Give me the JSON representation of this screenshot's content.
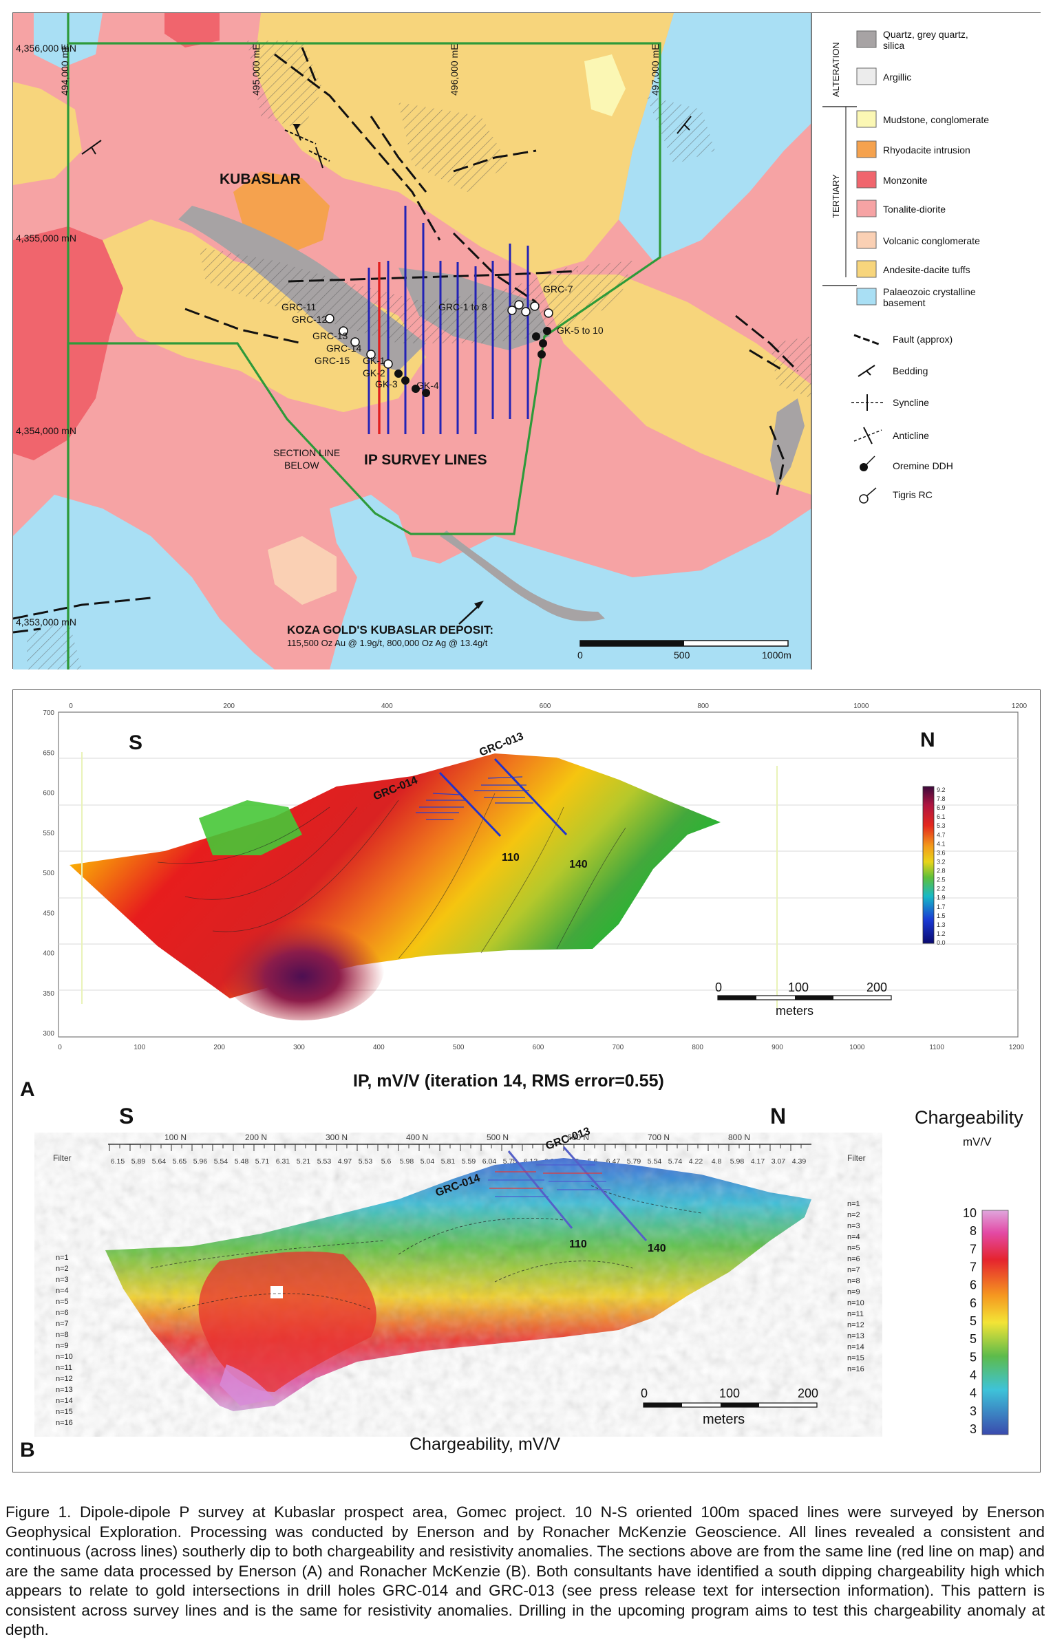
{
  "map": {
    "place_name": "KUBASLAR",
    "easting_labels": [
      "494,000 mE",
      "495,000 mE",
      "496,000 mE",
      "497,000 mE"
    ],
    "northing_labels": [
      "4,356,000 mN",
      "4,355,000 mN",
      "4,354,000 mN",
      "4,353,000 mN"
    ],
    "hole_labels": [
      "GRC-7",
      "GRC-1 to 8",
      "GK-5 to 10",
      "GRC-11",
      "GRC-12",
      "GRC-13",
      "GRC-14",
      "GRC-15",
      "GK-1",
      "GK-2",
      "GK-3",
      "GK-4"
    ],
    "ip_lines_label": "IP SURVEY LINES",
    "section_label_line1": "SECTION LINE",
    "section_label_line2": "BELOW",
    "deposit_title": "KOZA GOLD'S KUBASLAR DEPOSIT:",
    "deposit_detail": "115,500 Oz Au @ 1.9g/t, 800,000 Oz Ag @ 13.4g/t",
    "scale_labels": [
      "0",
      "500",
      "1000m"
    ],
    "colors": {
      "tonalite": "#f6a3a4",
      "andesite": "#f7d57c",
      "basement": "#a9dff4",
      "monzonite": "#f0656d",
      "rhyodacite": "#f5a24e",
      "mudstone": "#fbf7b4",
      "silica": "#a7a3a4",
      "volcanic": "#fad0b4",
      "claim": "#2e9a3a",
      "ip_line": "#2323b6",
      "section_line": "#e02020"
    }
  },
  "legend": {
    "group_alteration": "ALTERATION",
    "group_tertiary": "TERTIARY",
    "items": [
      {
        "label_lines": [
          "Quartz, grey quartz,",
          "silica"
        ],
        "color": "#a7a3a4"
      },
      {
        "label_lines": [
          "Argillic"
        ],
        "color": "#ececec"
      },
      {
        "label_lines": [
          "Mudstone, conglomerate"
        ],
        "color": "#fbf7b4"
      },
      {
        "label_lines": [
          "Rhyodacite intrusion"
        ],
        "color": "#f5a24e"
      },
      {
        "label_lines": [
          "Monzonite"
        ],
        "color": "#f0656d"
      },
      {
        "label_lines": [
          "Tonalite-diorite"
        ],
        "color": "#f6a3a4"
      },
      {
        "label_lines": [
          "Volcanic conglomerate"
        ],
        "color": "#fad0b4"
      },
      {
        "label_lines": [
          "Andesite-dacite tuffs"
        ],
        "color": "#f7d57c"
      },
      {
        "label_lines": [
          "Palaeozoic crystalline",
          "basement"
        ],
        "color": "#a9dff4"
      }
    ],
    "symbols": [
      "Fault (approx)",
      "Bedding",
      "Syncline",
      "Anticline",
      "Oremine DDH",
      "Tigris RC"
    ]
  },
  "section_a": {
    "letter": "A",
    "south": "S",
    "north": "N",
    "hole_labels": [
      "GRC-014",
      "GRC-013"
    ],
    "depth_labels": [
      "110",
      "140"
    ],
    "top_ticks": [
      "0",
      "200",
      "400",
      "600",
      "800",
      "1000",
      "1200"
    ],
    "bottom_ticks": [
      "0",
      "100",
      "200",
      "300",
      "400",
      "500",
      "600",
      "700",
      "800",
      "900",
      "1000",
      "1100",
      "1200"
    ],
    "left_ticks": [
      "700",
      "650",
      "600",
      "550",
      "500",
      "450",
      "400",
      "350",
      "300"
    ],
    "colorbar_ticks": [
      "9.2",
      "7.8",
      "6.9",
      "6.1",
      "5.3",
      "4.7",
      "4.1",
      "3.6",
      "3.2",
      "2.8",
      "2.5",
      "2.2",
      "1.9",
      "1.7",
      "1.5",
      "1.3",
      "1.2",
      "0.0"
    ],
    "scale_labels": [
      "0",
      "100",
      "200"
    ],
    "scale_unit": "meters",
    "title": "IP, mV/V (iteration 14, RMS error=0.55)"
  },
  "section_b": {
    "letter": "B",
    "south": "S",
    "north": "N",
    "hole_labels": [
      "GRC-014",
      "GRC-013"
    ],
    "depth_labels": [
      "110",
      "140"
    ],
    "northing_ticks": [
      "100 N",
      "200 N",
      "300 N",
      "400 N",
      "500 N",
      "600 N",
      "700 N",
      "800 N"
    ],
    "filter_label": "Filter",
    "filter_values": [
      "6.15",
      "5.89",
      "5.64",
      "5.65",
      "5.96",
      "5.54",
      "5.48",
      "5.71",
      "6.31",
      "5.21",
      "5.53",
      "4.97",
      "5.53",
      "5.6",
      "5.98",
      "5.04",
      "5.81",
      "5.59",
      "6.04",
      "5.75",
      "6.13",
      "6.08",
      "6.05",
      "5.6",
      "6.47",
      "5.79",
      "5.54",
      "5.74",
      "4.22",
      "4.8",
      "5.98",
      "4.17",
      "3.07",
      "4.39"
    ],
    "n_levels": [
      "n=1",
      "n=2",
      "n=3",
      "n=4",
      "n=5",
      "n=6",
      "n=7",
      "n=8",
      "n=9",
      "n=10",
      "n=11",
      "n=12",
      "n=13",
      "n=14",
      "n=15",
      "n=16"
    ],
    "legend_title": "Chargeability",
    "legend_unit": "mV/V",
    "legend_ticks": [
      "10",
      "8",
      "7",
      "7",
      "6",
      "6",
      "5",
      "5",
      "5",
      "4",
      "4",
      "3",
      "3"
    ],
    "scale_labels": [
      "0",
      "100",
      "200"
    ],
    "scale_unit": "meters",
    "title": "Chargeability, mV/V"
  },
  "caption": "Figure 1. Dipole-dipole P survey at Kubaslar prospect area, Gomec project. 10 N-S oriented 100m spaced lines were surveyed by Enerson Geophysical Exploration. Processing was conducted by Enerson and by Ronacher McKenzie Geoscience. All lines revealed a consistent and continuous (across lines) southerly dip to both chargeability and resistivity anomalies. The sections above are from the same line (red line on map) and are the same data processed by Enerson (A) and Ronacher McKenzie (B). Both consultants have identified a south dipping chargeability high which appears to relate to gold intersections in drill holes GRC-014 and GRC-013 (see press release text for intersection information). This pattern is consistent across survey lines and is the same for resistivity anomalies. Drilling in the upcoming program aims to test this chargeability anomaly at depth."
}
